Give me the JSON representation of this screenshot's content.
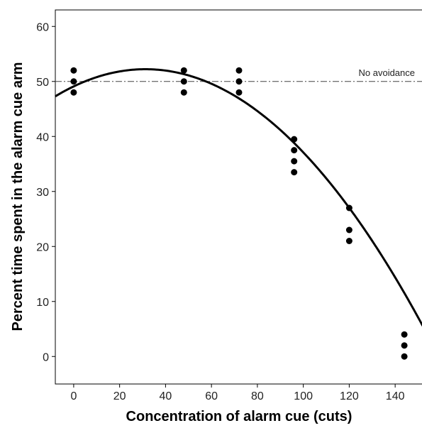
{
  "chart_data": {
    "type": "scatter",
    "xlabel": "Concentration of alarm cue (cuts)",
    "ylabel": "Percent time spent in the alarm cue arm",
    "xlim": [
      -8,
      152
    ],
    "ylim": [
      -5,
      63
    ],
    "xticks": [
      0,
      20,
      40,
      60,
      80,
      100,
      120,
      140
    ],
    "yticks": [
      0,
      10,
      20,
      30,
      40,
      50,
      60
    ],
    "grid": false,
    "legend": "none",
    "reference_line": {
      "y": 50,
      "label": "No avoidance",
      "style": "dash-dot"
    },
    "points": [
      {
        "x": 0,
        "y": 52
      },
      {
        "x": 0,
        "y": 50
      },
      {
        "x": 0,
        "y": 48
      },
      {
        "x": 48,
        "y": 52
      },
      {
        "x": 48,
        "y": 50
      },
      {
        "x": 48,
        "y": 48
      },
      {
        "x": 72,
        "y": 52
      },
      {
        "x": 72,
        "y": 50
      },
      {
        "x": 72,
        "y": 48
      },
      {
        "x": 96,
        "y": 39.5
      },
      {
        "x": 96,
        "y": 37.5
      },
      {
        "x": 96,
        "y": 35.5
      },
      {
        "x": 96,
        "y": 33.5
      },
      {
        "x": 120,
        "y": 27
      },
      {
        "x": 120,
        "y": 23
      },
      {
        "x": 120,
        "y": 21
      },
      {
        "x": 144,
        "y": 4
      },
      {
        "x": 144,
        "y": 2
      },
      {
        "x": 144,
        "y": 0
      }
    ],
    "fit_curve": {
      "type": "quadratic",
      "coefficients": [
        49.1,
        0.2,
        -0.0032
      ]
    },
    "colors": {
      "points": "#000000",
      "curve": "#000000",
      "reference": "#444444"
    }
  }
}
